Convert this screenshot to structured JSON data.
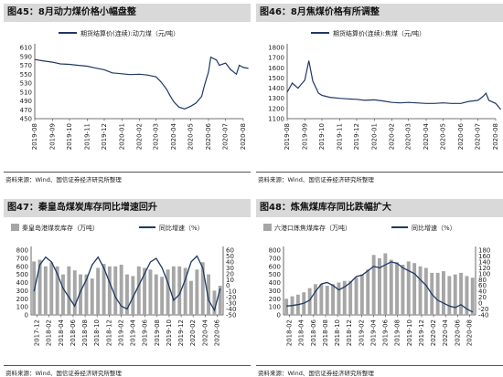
{
  "source_text": "资料来源：Wind、国信证券经济研究所整理",
  "colors": {
    "navy": "#1f3864",
    "gray_bar": "#a6a6a6",
    "header": "#d9d9d9"
  },
  "panels": [
    {
      "title": "图45：8月动力煤价格小幅盘整",
      "chart_data": {
        "type": "line",
        "series": [
          {
            "name": "期货结算价(连续):动力煤（元/吨）",
            "color": "#1f3864",
            "points": [
              [
                "2019-08",
                583
              ],
              [
                "2019-08-15",
                580
              ],
              [
                "2019-09",
                577
              ],
              [
                "2019-09-15",
                573
              ],
              [
                "2019-10",
                572
              ],
              [
                "2019-10-15",
                570
              ],
              [
                "2019-11",
                568
              ],
              [
                "2019-11-15",
                564
              ],
              [
                "2019-12",
                560
              ],
              [
                "2019-12-15",
                553
              ],
              [
                "2020-01",
                551
              ],
              [
                "2020-01-15",
                549
              ],
              [
                "2020-02",
                550
              ],
              [
                "2020-02-15",
                548
              ],
              [
                "2020-03",
                544
              ],
              [
                "2020-03-10",
                532
              ],
              [
                "2020-03-20",
                515
              ],
              [
                "2020-03-25",
                503
              ],
              [
                "2020-04",
                488
              ],
              [
                "2020-04-10",
                476
              ],
              [
                "2020-04-20",
                472
              ],
              [
                "2020-05",
                478
              ],
              [
                "2020-05-10",
                485
              ],
              [
                "2020-05-20",
                500
              ],
              [
                "2020-05-25",
                525
              ],
              [
                "2020-06",
                555
              ],
              [
                "2020-06-05",
                588
              ],
              [
                "2020-06-15",
                582
              ],
              [
                "2020-06-20",
                570
              ],
              [
                "2020-07",
                575
              ],
              [
                "2020-07-10",
                560
              ],
              [
                "2020-07-20",
                550
              ],
              [
                "2020-07-25",
                570
              ],
              [
                "2020-08",
                565
              ],
              [
                "2020-08-10",
                563
              ]
            ]
          }
        ],
        "x_ticks": [
          "2019-08",
          "2019-09",
          "2019-10",
          "2019-11",
          "2019-12",
          "2020-01",
          "2020-02",
          "2020-03",
          "2020-04",
          "2020-05",
          "2020-06",
          "2020-07",
          "2020-08"
        ],
        "y_ticks": [
          450,
          470,
          490,
          510,
          530,
          550,
          570,
          590,
          610
        ],
        "ylim": [
          450,
          610
        ],
        "legend": "top"
      }
    },
    {
      "title": "图46：8月焦煤价格有所调整",
      "chart_data": {
        "type": "line",
        "series": [
          {
            "name": "期货结算价(连续):焦煤（元/吨）",
            "color": "#1f3864",
            "points": [
              [
                "2019-08",
                1360
              ],
              [
                "2019-08-10",
                1450
              ],
              [
                "2019-08-20",
                1400
              ],
              [
                "2019-09",
                1480
              ],
              [
                "2019-09-08",
                1670
              ],
              [
                "2019-09-15",
                1470
              ],
              [
                "2019-09-25",
                1350
              ],
              [
                "2019-10",
                1330
              ],
              [
                "2019-10-15",
                1310
              ],
              [
                "2019-11",
                1300
              ],
              [
                "2019-11-15",
                1295
              ],
              [
                "2019-12",
                1290
              ],
              [
                "2019-12-15",
                1280
              ],
              [
                "2020-01",
                1285
              ],
              [
                "2020-01-15",
                1275
              ],
              [
                "2020-02",
                1260
              ],
              [
                "2020-02-15",
                1255
              ],
              [
                "2020-03",
                1260
              ],
              [
                "2020-03-15",
                1255
              ],
              [
                "2020-04",
                1250
              ],
              [
                "2020-04-15",
                1250
              ],
              [
                "2020-05",
                1255
              ],
              [
                "2020-05-15",
                1250
              ],
              [
                "2020-06",
                1250
              ],
              [
                "2020-06-15",
                1270
              ],
              [
                "2020-07",
                1280
              ],
              [
                "2020-07-10",
                1320
              ],
              [
                "2020-07-15",
                1350
              ],
              [
                "2020-07-20",
                1280
              ],
              [
                "2020-08",
                1250
              ],
              [
                "2020-08-10",
                1190
              ]
            ]
          }
        ],
        "x_ticks": [
          "2019-08",
          "2019-09",
          "2019-10",
          "2019-11",
          "2019-12",
          "2020-01",
          "2020-02",
          "2020-03",
          "2020-04",
          "2020-05",
          "2020-06",
          "2020-07",
          "2020-08"
        ],
        "y_ticks": [
          1100,
          1200,
          1300,
          1400,
          1500,
          1600,
          1700,
          1800
        ],
        "ylim": [
          1100,
          1800
        ],
        "legend": "top"
      }
    },
    {
      "title": "图47：秦皇岛煤炭库存同比增速回升",
      "chart_data": {
        "type": "bar+line",
        "bar_series": {
          "name": "秦皇岛港煤炭库存（万吨）",
          "color": "#a6a6a6",
          "values": [
            660,
            680,
            600,
            650,
            600,
            500,
            600,
            550,
            500,
            500,
            450,
            580,
            630,
            600,
            600,
            620,
            500,
            480,
            600,
            580,
            560,
            500,
            470,
            560,
            600,
            600,
            580,
            420,
            560,
            650,
            500,
            300,
            360
          ]
        },
        "line_series": {
          "name": "同比增速（%）",
          "color": "#1f3864",
          "values": [
            -10,
            35,
            48,
            40,
            20,
            -5,
            -20,
            -35,
            -10,
            10,
            35,
            48,
            30,
            5,
            -20,
            -35,
            -40,
            -20,
            0,
            20,
            40,
            46,
            30,
            5,
            -25,
            -15,
            10,
            40,
            50,
            30,
            -25,
            -42,
            -5
          ]
        },
        "x_ticks": [
          "2017-12",
          "2018-02",
          "2018-04",
          "2018-06",
          "2018-08",
          "2018-10",
          "2018-12",
          "2019-02",
          "2019-04",
          "2019-06",
          "2019-08",
          "2019-10",
          "2019-12",
          "2020-02",
          "2020-04",
          "2020-06"
        ],
        "y_left_ticks": [
          0,
          100,
          200,
          300,
          400,
          500,
          600,
          700,
          800
        ],
        "y_right_ticks": [
          -50,
          -40,
          -30,
          -20,
          -10,
          0,
          10,
          20,
          30,
          40,
          50,
          60
        ],
        "ylim_left": [
          0,
          800
        ],
        "ylim_right": [
          -50,
          60
        ],
        "legend": "top"
      }
    },
    {
      "title": "图48：炼焦煤库存同比跌幅扩大",
      "chart_data": {
        "type": "bar+line",
        "bar_series": {
          "name": "六港口炼焦煤库存（万吨）",
          "color": "#a6a6a6",
          "values": [
            200,
            230,
            250,
            280,
            330,
            380,
            380,
            360,
            380,
            400,
            420,
            420,
            460,
            500,
            560,
            740,
            700,
            760,
            680,
            650,
            620,
            660,
            640,
            600,
            580,
            520,
            520,
            540,
            480,
            500,
            520,
            480,
            460
          ]
        },
        "line_series": {
          "name": "同比增速（%）",
          "color": "#1f3864",
          "values": [
            -10,
            -8,
            -5,
            0,
            10,
            40,
            65,
            70,
            60,
            45,
            55,
            70,
            90,
            95,
            110,
            125,
            120,
            130,
            140,
            135,
            120,
            110,
            100,
            80,
            60,
            30,
            10,
            0,
            -10,
            -15,
            -5,
            -20,
            -30
          ]
        },
        "x_ticks": [
          "2018-02",
          "2018-04",
          "2018-06",
          "2018-08",
          "2018-10",
          "2018-12",
          "2019-02",
          "2019-04",
          "2019-06",
          "2019-08",
          "2019-10",
          "2019-12",
          "2020-02",
          "2020-04",
          "2020-06",
          "2020-08"
        ],
        "y_left_ticks": [
          0,
          100,
          200,
          300,
          400,
          500,
          600,
          700,
          800
        ],
        "y_right_ticks": [
          -40,
          -20,
          0,
          20,
          40,
          60,
          80,
          100,
          120,
          140,
          160,
          180
        ],
        "ylim_left": [
          0,
          800
        ],
        "ylim_right": [
          -40,
          180
        ],
        "legend": "top"
      }
    }
  ]
}
